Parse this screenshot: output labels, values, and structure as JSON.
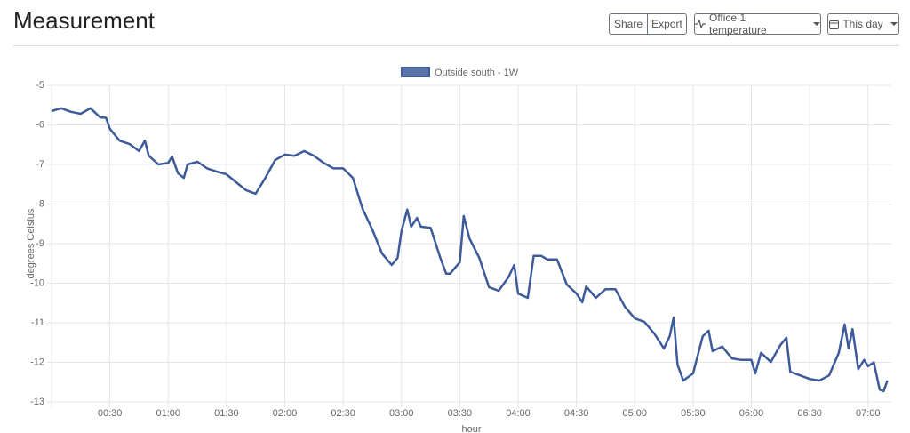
{
  "header": {
    "title": "Measurement",
    "buttons": [
      "Share",
      "Export",
      "Office 1 temperature",
      "This day"
    ]
  },
  "chart_data": {
    "type": "line",
    "legend": "top",
    "grid": true,
    "x_label": "hour",
    "y_label": "degrees Celsius",
    "x": [
      0,
      5,
      10,
      15,
      20,
      25,
      28,
      30,
      35,
      40,
      45,
      48,
      50,
      55,
      60,
      62,
      65,
      68,
      70,
      75,
      80,
      85,
      90,
      95,
      100,
      105,
      110,
      115,
      120,
      125,
      130,
      135,
      140,
      145,
      150,
      155,
      160,
      165,
      170,
      175,
      178,
      180,
      183,
      185,
      188,
      190,
      195,
      200,
      203,
      205,
      210,
      212,
      215,
      220,
      225,
      230,
      235,
      238,
      240,
      245,
      248,
      252,
      255,
      260,
      265,
      270,
      273,
      275,
      280,
      285,
      290,
      295,
      300,
      305,
      310,
      315,
      318,
      320,
      322,
      325,
      330,
      335,
      338,
      340,
      345,
      350,
      355,
      360,
      362,
      365,
      370,
      375,
      378,
      380,
      385,
      390,
      395,
      400,
      405,
      408,
      410,
      412,
      415,
      418,
      420,
      423,
      426,
      428,
      430
    ],
    "series": [
      {
        "name": "Outside south - 1W",
        "color": "#3d5a99",
        "values": [
          -5.65,
          -5.58,
          -5.67,
          -5.72,
          -5.58,
          -5.81,
          -5.82,
          -6.1,
          -6.4,
          -6.48,
          -6.66,
          -6.4,
          -6.78,
          -7.0,
          -6.96,
          -6.8,
          -7.22,
          -7.34,
          -7.0,
          -6.93,
          -7.1,
          -7.18,
          -7.25,
          -7.45,
          -7.65,
          -7.74,
          -7.34,
          -6.89,
          -6.75,
          -6.78,
          -6.66,
          -6.78,
          -6.96,
          -7.1,
          -7.1,
          -7.34,
          -8.12,
          -8.64,
          -9.25,
          -9.54,
          -9.36,
          -8.68,
          -8.14,
          -8.57,
          -8.35,
          -8.57,
          -8.6,
          -9.36,
          -9.76,
          -9.76,
          -9.47,
          -8.3,
          -8.87,
          -9.36,
          -10.1,
          -10.19,
          -9.85,
          -9.54,
          -10.26,
          -10.37,
          -9.31,
          -9.31,
          -9.4,
          -9.4,
          -10.03,
          -10.26,
          -10.48,
          -10.08,
          -10.37,
          -10.15,
          -10.15,
          -10.6,
          -10.89,
          -10.98,
          -11.27,
          -11.65,
          -11.34,
          -10.87,
          -12.06,
          -12.46,
          -12.28,
          -11.34,
          -11.2,
          -11.72,
          -11.6,
          -11.9,
          -11.94,
          -11.94,
          -12.28,
          -11.76,
          -11.99,
          -11.56,
          -11.38,
          -12.24,
          -12.33,
          -12.42,
          -12.46,
          -12.33,
          -11.76,
          -11.04,
          -11.65,
          -11.16,
          -12.17,
          -11.94,
          -12.1,
          -12.0,
          -12.69,
          -12.73,
          -12.46
        ]
      }
    ],
    "xlim": [
      0,
      432
    ],
    "ylim": [
      -13,
      -5
    ],
    "xticks": [
      {
        "value": 30,
        "label": "00:30"
      },
      {
        "value": 60,
        "label": "01:00"
      },
      {
        "value": 90,
        "label": "01:30"
      },
      {
        "value": 120,
        "label": "02:00"
      },
      {
        "value": 150,
        "label": "02:30"
      },
      {
        "value": 180,
        "label": "03:00"
      },
      {
        "value": 210,
        "label": "03:30"
      },
      {
        "value": 240,
        "label": "04:00"
      },
      {
        "value": 270,
        "label": "04:30"
      },
      {
        "value": 300,
        "label": "05:00"
      },
      {
        "value": 330,
        "label": "05:30"
      },
      {
        "value": 360,
        "label": "06:00"
      },
      {
        "value": 390,
        "label": "06:30"
      },
      {
        "value": 420,
        "label": "07:00"
      }
    ],
    "yticks": [
      -13,
      -12,
      -11,
      -10,
      -9,
      -8,
      -7,
      -6,
      -5
    ]
  }
}
